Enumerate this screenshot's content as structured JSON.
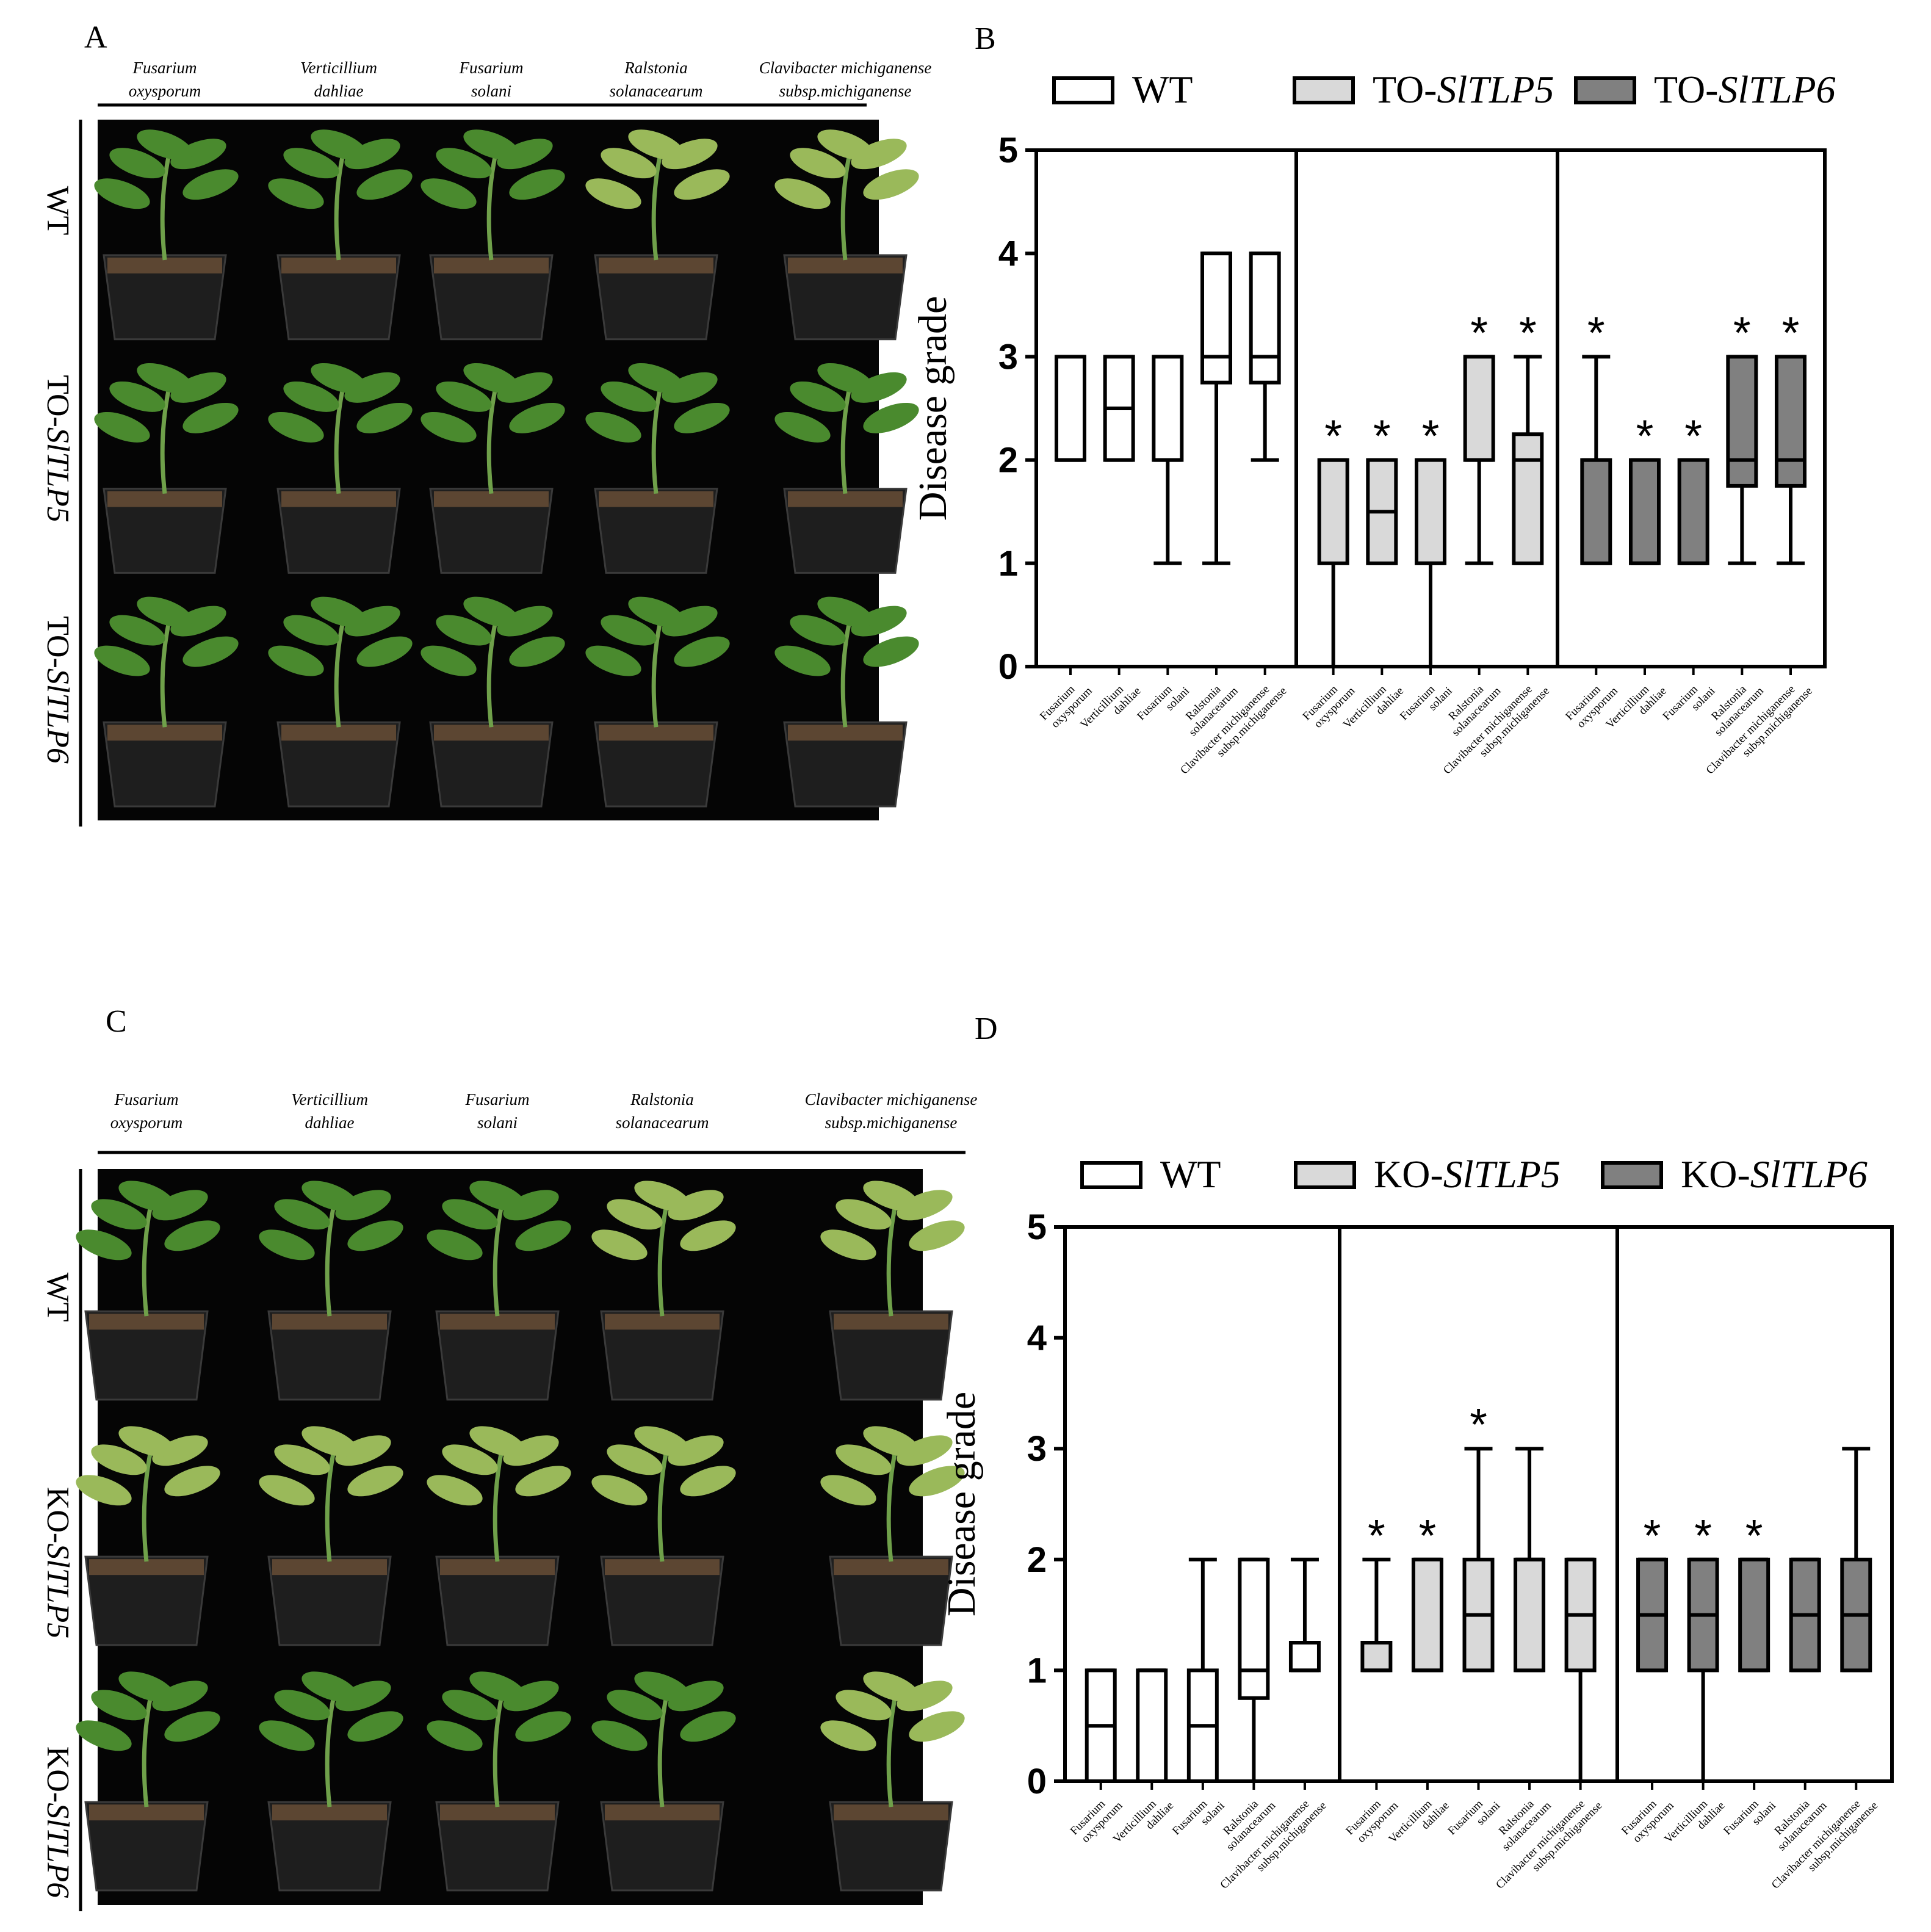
{
  "panels": {
    "A": {
      "letter": "A",
      "row_labels": [
        [
          "WT",
          ""
        ],
        [
          "TO-",
          "SlTLP5"
        ],
        [
          "TO-",
          "SlTLP6"
        ]
      ]
    },
    "B": {
      "letter": "B",
      "legend": [
        [
          "WT",
          ""
        ],
        [
          "TO-",
          "SlTLP5"
        ],
        [
          "TO-",
          "SlTLP6"
        ]
      ]
    },
    "C": {
      "letter": "C",
      "row_labels": [
        [
          "WT",
          ""
        ],
        [
          "KO-",
          "SlTLP5"
        ],
        [
          "KO-",
          "SlTLP6"
        ]
      ]
    },
    "D": {
      "letter": "D",
      "legend": [
        [
          "WT",
          ""
        ],
        [
          "KO-",
          "SlTLP5"
        ],
        [
          "KO-",
          "SlTLP6"
        ]
      ]
    }
  },
  "pathogens": [
    [
      "Fusarium",
      "oxysporum"
    ],
    [
      "Verticillium",
      "dahliae"
    ],
    [
      "Fusarium",
      "solani"
    ],
    [
      "Ralstonia",
      "solanacearum"
    ],
    [
      "Clavibacter michiganense",
      "subsp.michiganense"
    ]
  ],
  "colors": {
    "wt": "#ffffff",
    "line1": "#d9d9d9",
    "line2": "#808080",
    "photo_bg": "#050505",
    "plant": "#4a8a2e",
    "pot": "#1e1e1e",
    "soil": "#5c4632"
  },
  "chart_data": [
    {
      "type": "box",
      "panel": "B",
      "ylabel": "Disease grade",
      "ylim": [
        0,
        5
      ],
      "yticks": [
        0,
        1,
        2,
        3,
        4,
        5
      ],
      "categories": [
        "Fusarium oxysporum",
        "Verticillium dahliae",
        "Fusarium solani",
        "Ralstonia solanacearum",
        "Clavibacter michiganense subsp.michiganense"
      ],
      "series": [
        {
          "name": "WT",
          "color": "#ffffff",
          "boxes": [
            {
              "min": 2,
              "q1": 2,
              "median": 2,
              "q3": 3,
              "max": 3,
              "sig": false
            },
            {
              "min": 2,
              "q1": 2,
              "median": 2.5,
              "q3": 3,
              "max": 3,
              "sig": false
            },
            {
              "min": 1,
              "q1": 2,
              "median": 2,
              "q3": 3,
              "max": 3,
              "sig": false
            },
            {
              "min": 1,
              "q1": 2.75,
              "median": 3,
              "q3": 4,
              "max": 4,
              "sig": false
            },
            {
              "min": 2,
              "q1": 2.75,
              "median": 3,
              "q3": 4,
              "max": 4,
              "sig": false
            }
          ]
        },
        {
          "name": "TO-SlTLP5",
          "color": "#d9d9d9",
          "boxes": [
            {
              "min": 0,
              "q1": 1,
              "median": 2,
              "q3": 2,
              "max": 2,
              "sig": true
            },
            {
              "min": 1,
              "q1": 1,
              "median": 1.5,
              "q3": 2,
              "max": 2,
              "sig": true
            },
            {
              "min": 0,
              "q1": 1,
              "median": 1,
              "q3": 2,
              "max": 2,
              "sig": true
            },
            {
              "min": 1,
              "q1": 2,
              "median": 2,
              "q3": 3,
              "max": 3,
              "sig": true
            },
            {
              "min": 1,
              "q1": 1,
              "median": 2,
              "q3": 2.25,
              "max": 3,
              "sig": true
            }
          ]
        },
        {
          "name": "TO-SlTLP6",
          "color": "#808080",
          "boxes": [
            {
              "min": 1,
              "q1": 1,
              "median": 2,
              "q3": 2,
              "max": 3,
              "sig": true
            },
            {
              "min": 1,
              "q1": 1,
              "median": 1,
              "q3": 2,
              "max": 2,
              "sig": true
            },
            {
              "min": 1,
              "q1": 1,
              "median": 1,
              "q3": 2,
              "max": 2,
              "sig": true
            },
            {
              "min": 1,
              "q1": 1.75,
              "median": 2,
              "q3": 3,
              "max": 3,
              "sig": true
            },
            {
              "min": 1,
              "q1": 1.75,
              "median": 2,
              "q3": 3,
              "max": 3,
              "sig": true
            }
          ]
        }
      ]
    },
    {
      "type": "box",
      "panel": "D",
      "ylabel": "Disease grade",
      "ylim": [
        0,
        5
      ],
      "yticks": [
        0,
        1,
        2,
        3,
        4,
        5
      ],
      "categories": [
        "Fusarium oxysporum",
        "Verticillium dahliae",
        "Fusarium solani",
        "Ralstonia solanacearum",
        "Clavibacter michiganense subsp.michiganense"
      ],
      "series": [
        {
          "name": "WT",
          "color": "#ffffff",
          "boxes": [
            {
              "min": 0,
              "q1": 0,
              "median": 0.5,
              "q3": 1,
              "max": 1,
              "sig": false
            },
            {
              "min": 0,
              "q1": 0,
              "median": 1,
              "q3": 1,
              "max": 1,
              "sig": false
            },
            {
              "min": 0,
              "q1": 0,
              "median": 0.5,
              "q3": 1,
              "max": 2,
              "sig": false
            },
            {
              "min": 0,
              "q1": 0.75,
              "median": 1,
              "q3": 2,
              "max": 2,
              "sig": false
            },
            {
              "min": 1,
              "q1": 1,
              "median": 1,
              "q3": 1.25,
              "max": 2,
              "sig": false
            }
          ]
        },
        {
          "name": "KO-SlTLP5",
          "color": "#d9d9d9",
          "boxes": [
            {
              "min": 1,
              "q1": 1,
              "median": 1,
              "q3": 1.25,
              "max": 2,
              "sig": true
            },
            {
              "min": 1,
              "q1": 1,
              "median": 1,
              "q3": 2,
              "max": 2,
              "sig": true
            },
            {
              "min": 1,
              "q1": 1,
              "median": 1.5,
              "q3": 2,
              "max": 3,
              "sig": true
            },
            {
              "min": 1,
              "q1": 1,
              "median": 2,
              "q3": 2,
              "max": 3,
              "sig": false
            },
            {
              "min": 0,
              "q1": 1,
              "median": 1.5,
              "q3": 2,
              "max": 2,
              "sig": false
            }
          ]
        },
        {
          "name": "KO-SlTLP6",
          "color": "#808080",
          "boxes": [
            {
              "min": 1,
              "q1": 1,
              "median": 1.5,
              "q3": 2,
              "max": 2,
              "sig": true
            },
            {
              "min": 0,
              "q1": 1,
              "median": 1.5,
              "q3": 2,
              "max": 2,
              "sig": true
            },
            {
              "min": 1,
              "q1": 1,
              "median": 1,
              "q3": 2,
              "max": 2,
              "sig": true
            },
            {
              "min": 1,
              "q1": 1,
              "median": 1.5,
              "q3": 2,
              "max": 2,
              "sig": false
            },
            {
              "min": 1,
              "q1": 1,
              "median": 1.5,
              "q3": 2,
              "max": 3,
              "sig": false
            }
          ]
        }
      ]
    }
  ]
}
